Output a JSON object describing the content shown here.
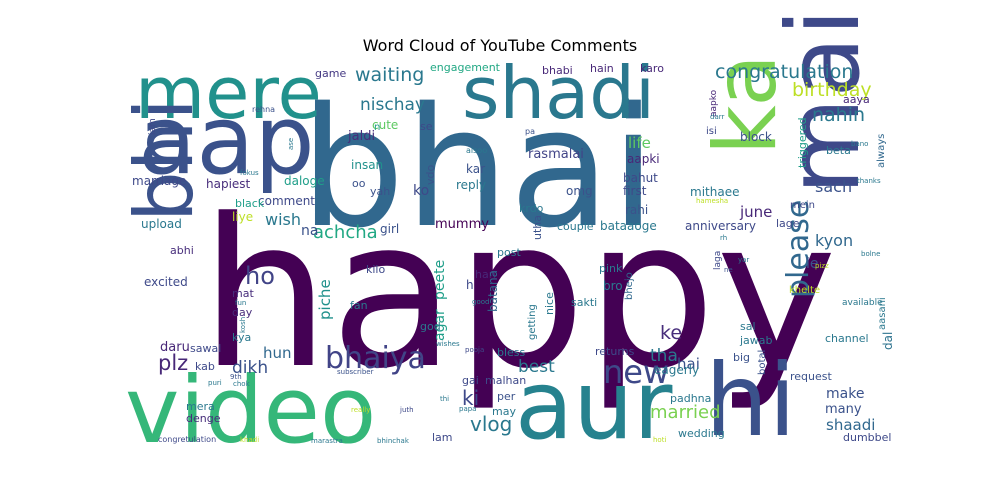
{
  "chart_data": {
    "type": "wordcloud",
    "title": "Word Cloud of YouTube Comments",
    "words": [
      {
        "text": "happy",
        "color": "#440154"
      },
      {
        "text": "bhai",
        "color": "#31688e"
      },
      {
        "text": "video",
        "color": "#35b779"
      },
      {
        "text": "aur",
        "color": "#26828e"
      },
      {
        "text": "aap",
        "color": "#3b528b"
      },
      {
        "text": "shadi",
        "color": "#2a788e"
      },
      {
        "text": "mere",
        "color": "#21918c"
      },
      {
        "text": "main",
        "color": "#3e4989"
      },
      {
        "text": "hi",
        "color": "#3b528b"
      },
      {
        "text": "ka",
        "color": "#7ad151"
      },
      {
        "text": "bhi",
        "color": "#3b528b"
      },
      {
        "text": "bhaiya",
        "color": "#414487"
      },
      {
        "text": "please",
        "color": "#31688e"
      },
      {
        "text": "new",
        "color": "#3e4989"
      },
      {
        "text": "congratulation",
        "color": "#2a788e"
      },
      {
        "text": "nahin",
        "color": "#2a788e"
      },
      {
        "text": "waiting",
        "color": "#2a788e"
      },
      {
        "text": "birthday",
        "color": "#bddf26"
      },
      {
        "text": "nischay",
        "color": "#2a788e"
      },
      {
        "text": "achcha",
        "color": "#22a884"
      },
      {
        "text": "ho",
        "color": "#414487"
      },
      {
        "text": "plz",
        "color": "#482878"
      },
      {
        "text": "dikh",
        "color": "#3b528b"
      },
      {
        "text": "married",
        "color": "#7ad151"
      },
      {
        "text": "vlog",
        "color": "#2a788e"
      },
      {
        "text": "ki",
        "color": "#3e4989"
      },
      {
        "text": "best",
        "color": "#2a788e"
      },
      {
        "text": "sach",
        "color": "#3b528b"
      },
      {
        "text": "kyon",
        "color": "#31688e"
      },
      {
        "text": "wish",
        "color": "#2a788e"
      },
      {
        "text": "june",
        "color": "#482878"
      },
      {
        "text": "hun",
        "color": "#31688e"
      },
      {
        "text": "shaadi",
        "color": "#31688e"
      },
      {
        "text": "tha",
        "color": "#2a788e"
      },
      {
        "text": "ke",
        "color": "#472d7b"
      },
      {
        "text": "hai",
        "color": "#3b528b"
      },
      {
        "text": "life",
        "color": "#5ec962"
      },
      {
        "text": "jaldi",
        "color": "#472d7b"
      },
      {
        "text": "cute",
        "color": "#5ec962"
      },
      {
        "text": "rasmalai",
        "color": "#414487"
      },
      {
        "text": "mummy",
        "color": "#440154"
      },
      {
        "text": "peete",
        "color": "#1f9e89"
      },
      {
        "text": "agar",
        "color": "#1f9e89"
      },
      {
        "text": "piche",
        "color": "#21918c"
      },
      {
        "text": "daru",
        "color": "#482878"
      },
      {
        "text": "na",
        "color": "#3b528b"
      },
      {
        "text": "ko",
        "color": "#3e4989"
      },
      {
        "text": "make",
        "color": "#3b528b"
      },
      {
        "text": "many",
        "color": "#3b528b"
      },
      {
        "text": "dal",
        "color": "#2c728e"
      },
      {
        "text": "le",
        "color": "#3b528b"
      },
      {
        "text": "bhabi",
        "color": "#482878"
      },
      {
        "text": "hain",
        "color": "#482878"
      },
      {
        "text": "karo",
        "color": "#482878"
      },
      {
        "text": "engagement",
        "color": "#22a884"
      },
      {
        "text": "game",
        "color": "#443983"
      },
      {
        "text": "insan",
        "color": "#21918c"
      },
      {
        "text": "vdo",
        "color": "#3b528b"
      },
      {
        "text": "reply",
        "color": "#2a788e"
      },
      {
        "text": "kar",
        "color": "#3b528b"
      },
      {
        "text": "omg",
        "color": "#3b528b"
      },
      {
        "text": "aapki",
        "color": "#482878"
      },
      {
        "text": "bahut",
        "color": "#3e4989"
      },
      {
        "text": "first",
        "color": "#3e4989"
      },
      {
        "text": "mithaee",
        "color": "#2a788e"
      },
      {
        "text": "rahi",
        "color": "#3b528b"
      },
      {
        "text": "bataaoge",
        "color": "#2a788e"
      },
      {
        "text": "anniversary",
        "color": "#3e4989"
      },
      {
        "text": "lage",
        "color": "#3e4989"
      },
      {
        "text": "block",
        "color": "#3b528b"
      },
      {
        "text": "triggered",
        "color": "#1f9e89"
      },
      {
        "text": "beta",
        "color": "#2a788e"
      },
      {
        "text": "aaya",
        "color": "#482878"
      },
      {
        "text": "always",
        "color": "#31688e"
      },
      {
        "text": "marriage",
        "color": "#3e4989"
      },
      {
        "text": "hapiest",
        "color": "#472d7b"
      },
      {
        "text": "daloge",
        "color": "#1f9e89"
      },
      {
        "text": "comment",
        "color": "#3e4989"
      },
      {
        "text": "black",
        "color": "#1f9e89"
      },
      {
        "text": "liye",
        "color": "#bddf26"
      },
      {
        "text": "upload",
        "color": "#2a788e"
      },
      {
        "text": "girl",
        "color": "#3b528b"
      },
      {
        "text": "abhi",
        "color": "#472d7b"
      },
      {
        "text": "excited",
        "color": "#3e4989"
      },
      {
        "text": "mat",
        "color": "#472d7b"
      },
      {
        "text": "day",
        "color": "#472d7b"
      },
      {
        "text": "kya",
        "color": "#2a788e"
      },
      {
        "text": "kab",
        "color": "#3e4989"
      },
      {
        "text": "sawal",
        "color": "#3e4989"
      },
      {
        "text": "mera",
        "color": "#2a788e"
      },
      {
        "text": "denge",
        "color": "#472d7b"
      },
      {
        "text": "kilo",
        "color": "#3e4989"
      },
      {
        "text": "fan",
        "color": "#2a788e"
      },
      {
        "text": "god",
        "color": "#2a788e"
      },
      {
        "text": "han",
        "color": "#482878"
      },
      {
        "text": "batana",
        "color": "#31688e"
      },
      {
        "text": "utha",
        "color": "#3b528b"
      },
      {
        "text": "krdo",
        "color": "#2a788e"
      },
      {
        "text": "couple",
        "color": "#2a788e"
      },
      {
        "text": "post",
        "color": "#2a788e"
      },
      {
        "text": "nice",
        "color": "#2a788e"
      },
      {
        "text": "getting",
        "color": "#2a788e"
      },
      {
        "text": "pink",
        "color": "#2a788e"
      },
      {
        "text": "bro",
        "color": "#2a788e"
      },
      {
        "text": "bhejo",
        "color": "#31688e"
      },
      {
        "text": "sakti",
        "color": "#2a788e"
      },
      {
        "text": "returns",
        "color": "#3e4989"
      },
      {
        "text": "bless",
        "color": "#2a788e"
      },
      {
        "text": "gai",
        "color": "#3e4989"
      },
      {
        "text": "malhan",
        "color": "#3e4989"
      },
      {
        "text": "per",
        "color": "#3b528b"
      },
      {
        "text": "may",
        "color": "#2a788e"
      },
      {
        "text": "lam",
        "color": "#3e4989"
      },
      {
        "text": "padhna",
        "color": "#2a788e"
      },
      {
        "text": "eagerly",
        "color": "#2a788e"
      },
      {
        "text": "sal",
        "color": "#2a788e"
      },
      {
        "text": "jawab",
        "color": "#2a788e"
      },
      {
        "text": "big",
        "color": "#3b528b"
      },
      {
        "text": "botal",
        "color": "#3b528b"
      },
      {
        "text": "request",
        "color": "#3b528b"
      },
      {
        "text": "wedding",
        "color": "#2a788e"
      },
      {
        "text": "dumbbel",
        "color": "#3e4989"
      },
      {
        "text": "channel",
        "color": "#2a788e"
      },
      {
        "text": "aasani",
        "color": "#2a788e"
      },
      {
        "text": "available",
        "color": "#2a788e"
      },
      {
        "text": "khelte",
        "color": "#bddf26"
      },
      {
        "text": "aapko",
        "color": "#482878"
      },
      {
        "text": "isi",
        "color": "#3e4989"
      },
      {
        "text": "mein",
        "color": "#3e4989"
      },
      {
        "text": "laga",
        "color": "#3e4989"
      },
      {
        "text": "rahe",
        "color": "#2a788e"
      },
      {
        "text": "iam",
        "color": "#3e4989"
      },
      {
        "text": "se",
        "color": "#3e4989"
      },
      {
        "text": "n",
        "color": "#1f9e89"
      },
      {
        "text": "oo",
        "color": "#3b528b"
      },
      {
        "text": "yah",
        "color": "#3b528b"
      },
      {
        "text": "h",
        "color": "#3e4989"
      },
      {
        "text": "rehna",
        "color": "#3b528b"
      },
      {
        "text": "fokus",
        "color": "#2a788e"
      },
      {
        "text": "ase",
        "color": "#2a788e"
      },
      {
        "text": "alsoo",
        "color": "#2a788e"
      },
      {
        "text": "pa",
        "color": "#3b528b"
      },
      {
        "text": "darr",
        "color": "#2a788e"
      },
      {
        "text": "bano",
        "color": "#2a788e"
      },
      {
        "text": "thanks",
        "color": "#2a788e"
      },
      {
        "text": "bolne",
        "color": "#2a788e"
      },
      {
        "text": "hamesha",
        "color": "#bddf26"
      },
      {
        "text": "pizz",
        "color": "#bddf26"
      },
      {
        "text": "rh",
        "color": "#2a788e"
      },
      {
        "text": "yar",
        "color": "#2a788e"
      },
      {
        "text": "ne",
        "color": "#3b528b"
      },
      {
        "text": "fun",
        "color": "#2a788e"
      },
      {
        "text": "kosh",
        "color": "#2a788e"
      },
      {
        "text": "good",
        "color": "#2a788e"
      },
      {
        "text": "wishes",
        "color": "#2a788e"
      },
      {
        "text": "pooja",
        "color": "#3e4989"
      },
      {
        "text": "9th",
        "color": "#3b528b"
      },
      {
        "text": "chok",
        "color": "#2a788e"
      },
      {
        "text": "puri",
        "color": "#2a788e"
      },
      {
        "text": "subscriber",
        "color": "#3b528b"
      },
      {
        "text": "thi",
        "color": "#2a788e"
      },
      {
        "text": "papa",
        "color": "#2a788e"
      },
      {
        "text": "really",
        "color": "#bddf26"
      },
      {
        "text": "juth",
        "color": "#3e4989"
      },
      {
        "text": "hoti",
        "color": "#bddf26"
      },
      {
        "text": "congretulation",
        "color": "#3e4989"
      },
      {
        "text": "khadi",
        "color": "#bddf26"
      },
      {
        "text": "marastra",
        "color": "#2a788e"
      },
      {
        "text": "bhinchak",
        "color": "#2a788e"
      }
    ]
  }
}
